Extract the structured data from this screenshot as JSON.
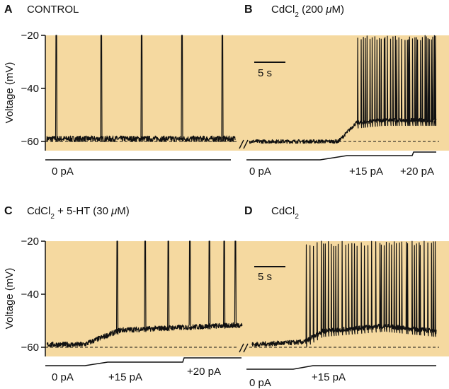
{
  "colors": {
    "background": "#f5d9a0",
    "trace": "#111111",
    "baseline": "#111111"
  },
  "chart_data": [
    {
      "type": "line",
      "panel": "A",
      "title": "CONTROL",
      "ylabel": "Voltage (mV)",
      "ylim": [
        -63,
        -20
      ],
      "yticks": [
        -20,
        -40,
        -60
      ],
      "baseline_mV": -60,
      "resting_mV": -59,
      "spike_times_s": [
        1.0,
        6.0,
        10.5,
        15.0,
        19.5
      ],
      "x_span_s": [
        0,
        21
      ],
      "current_steps": [
        {
          "label": "0 pA",
          "t_start": 0,
          "t_end": 21
        }
      ]
    },
    {
      "type": "line",
      "panel": "B",
      "title": "CdCl",
      "title_sub": "2",
      "title_suffix": " (200 ",
      "title_mu": "μ",
      "title_end": "M)",
      "scalebar": "5 s",
      "ylim": [
        -63,
        -20
      ],
      "baseline_mV": -60,
      "segments_mV": [
        [
          0,
          -60
        ],
        [
          10,
          -60
        ],
        [
          12,
          -53
        ],
        [
          15,
          -52
        ],
        [
          21,
          -52
        ]
      ],
      "spike_region_s": [
        12,
        21
      ],
      "current_steps": [
        {
          "label": "0 pA",
          "t_start": 0,
          "t_end": 10
        },
        {
          "label": "+15 pA",
          "t_start": 11,
          "t_end": 17
        },
        {
          "label": "+20 pA",
          "t_start": 17,
          "t_end": 21
        }
      ]
    },
    {
      "type": "line",
      "panel": "C",
      "title_pre": "CdCl",
      "title_sub": "2",
      "title_suffix": " + 5-HT (30 ",
      "title_mu": "μ",
      "title_end": "M)",
      "ylabel": "Voltage (mV)",
      "ylim": [
        -63,
        -20
      ],
      "yticks": [
        -20,
        -40,
        -60
      ],
      "baseline_mV": -60,
      "spike_times_s": [
        7.5,
        10.5,
        13.0,
        15.3,
        17.4,
        19.0,
        20.2
      ],
      "current_steps": [
        {
          "label": "0 pA",
          "t_start": 0,
          "t_end": 5
        },
        {
          "label": "+15 pA",
          "t_start": 6,
          "t_end": 13
        },
        {
          "label": "+20 pA",
          "t_start": 14,
          "t_end": 21
        }
      ]
    },
    {
      "type": "line",
      "panel": "D",
      "title_pre": "CdCl",
      "title_sub": "2",
      "scalebar": "5 s",
      "ylim": [
        -63,
        -20
      ],
      "baseline_mV": -60,
      "segments_mV": [
        [
          0,
          -59
        ],
        [
          6,
          -58
        ],
        [
          8,
          -54
        ],
        [
          15,
          -52
        ],
        [
          21,
          -54
        ]
      ],
      "spike_region_s": [
        6,
        21
      ],
      "current_steps": [
        {
          "label": "0 pA",
          "t_start": 0,
          "t_end": 6
        },
        {
          "label": "+15 pA",
          "t_start": 7,
          "t_end": 21
        }
      ]
    }
  ]
}
